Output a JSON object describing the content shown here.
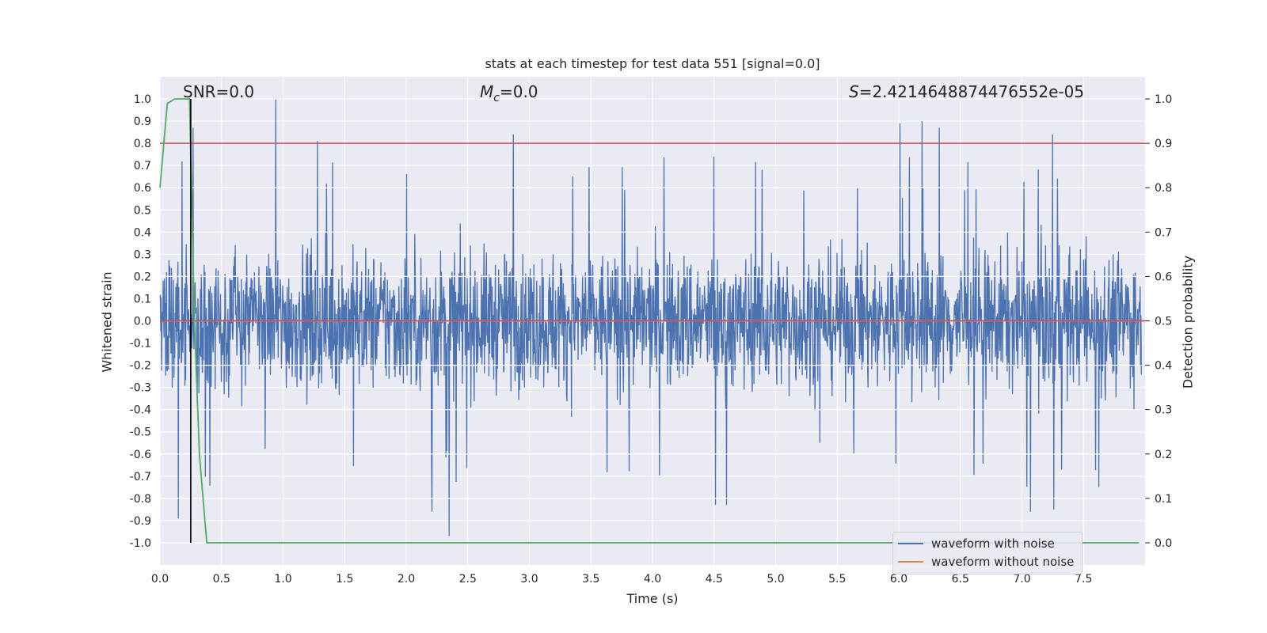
{
  "chart_data": {
    "type": "line",
    "title": "stats at each timestep for test data 551 [signal=0.0]",
    "xlabel": "Time (s)",
    "ylabel": "Whitened strain",
    "y2label": "Detection probability",
    "xlim": [
      0.0,
      8.0
    ],
    "ylim": [
      -1.1,
      1.1
    ],
    "y2lim": [
      -0.05,
      1.05
    ],
    "xticks": [
      "0.0",
      "0.5",
      "1.0",
      "1.5",
      "2.0",
      "2.5",
      "3.0",
      "3.5",
      "4.0",
      "4.5",
      "5.0",
      "5.5",
      "6.0",
      "6.5",
      "7.0",
      "7.5"
    ],
    "yticks": [
      "1.0",
      "0.9",
      "0.8",
      "0.7",
      "0.6",
      "0.5",
      "0.4",
      "0.3",
      "0.2",
      "0.1",
      "0.0",
      "-0.1",
      "-0.2",
      "-0.3",
      "-0.4",
      "-0.5",
      "-0.6",
      "-0.7",
      "-0.8",
      "-0.9",
      "-1.0"
    ],
    "y2ticks": [
      "1.0",
      "0.9",
      "0.8",
      "0.7",
      "0.6",
      "0.5",
      "0.4",
      "0.3",
      "0.2",
      "0.1",
      "0.0"
    ],
    "annotations": {
      "snr": "SNR=0.0",
      "mc_symbol": "M",
      "mc_sub": "c",
      "mc_value": "=0.0",
      "s_symbol": "S",
      "s_value": "=2.4214648874476552e-05"
    },
    "series": [
      {
        "name": "waveform with noise",
        "color": "#4c72b0",
        "description": "dense whitened noise, values mostly in [-0.45, 0.45] with occasional spikes to about 1.0 and -0.97",
        "notable_peaks": [
          {
            "x": 0.27,
            "y": 0.87
          },
          {
            "x": 0.94,
            "y": 1.0
          },
          {
            "x": 1.28,
            "y": 0.81
          },
          {
            "x": 2.87,
            "y": 0.84
          },
          {
            "x": 6.01,
            "y": 0.89
          },
          {
            "x": 6.19,
            "y": 0.9
          },
          {
            "x": 6.33,
            "y": 0.87
          },
          {
            "x": 7.25,
            "y": 0.84
          }
        ],
        "notable_troughs": [
          {
            "x": 0.15,
            "y": -0.89
          },
          {
            "x": 2.21,
            "y": -0.86
          },
          {
            "x": 2.35,
            "y": -0.97
          },
          {
            "x": 4.51,
            "y": -0.83
          },
          {
            "x": 4.6,
            "y": -0.83
          },
          {
            "x": 7.07,
            "y": -0.86
          },
          {
            "x": 7.26,
            "y": -0.85
          }
        ]
      },
      {
        "name": "waveform without noise",
        "color": "#dd8452",
        "x": [
          0.0,
          8.0
        ],
        "y": [
          0.0,
          0.0
        ]
      },
      {
        "name": "detection probability",
        "color": "#55a868",
        "axis": "right",
        "x": [
          0.0,
          0.06,
          0.12,
          0.2,
          0.24,
          0.28,
          0.32,
          0.38,
          7.95
        ],
        "y": [
          0.8,
          0.99,
          1.0,
          1.0,
          1.0,
          0.5,
          0.2,
          0.0,
          0.0
        ]
      }
    ],
    "hlines": [
      {
        "axis": "right",
        "y": 0.9,
        "color": "#c44e52"
      },
      {
        "axis": "left",
        "y": 0.0,
        "color": "#c44e52"
      }
    ],
    "vlines": [
      {
        "x": 0.25,
        "color": "#000000",
        "axis": "right",
        "ymin": 0.0,
        "ymax": 1.0
      }
    ],
    "legend": {
      "location": "lower-right",
      "entries": [
        "waveform with noise",
        "waveform without noise"
      ]
    },
    "grid": true
  }
}
